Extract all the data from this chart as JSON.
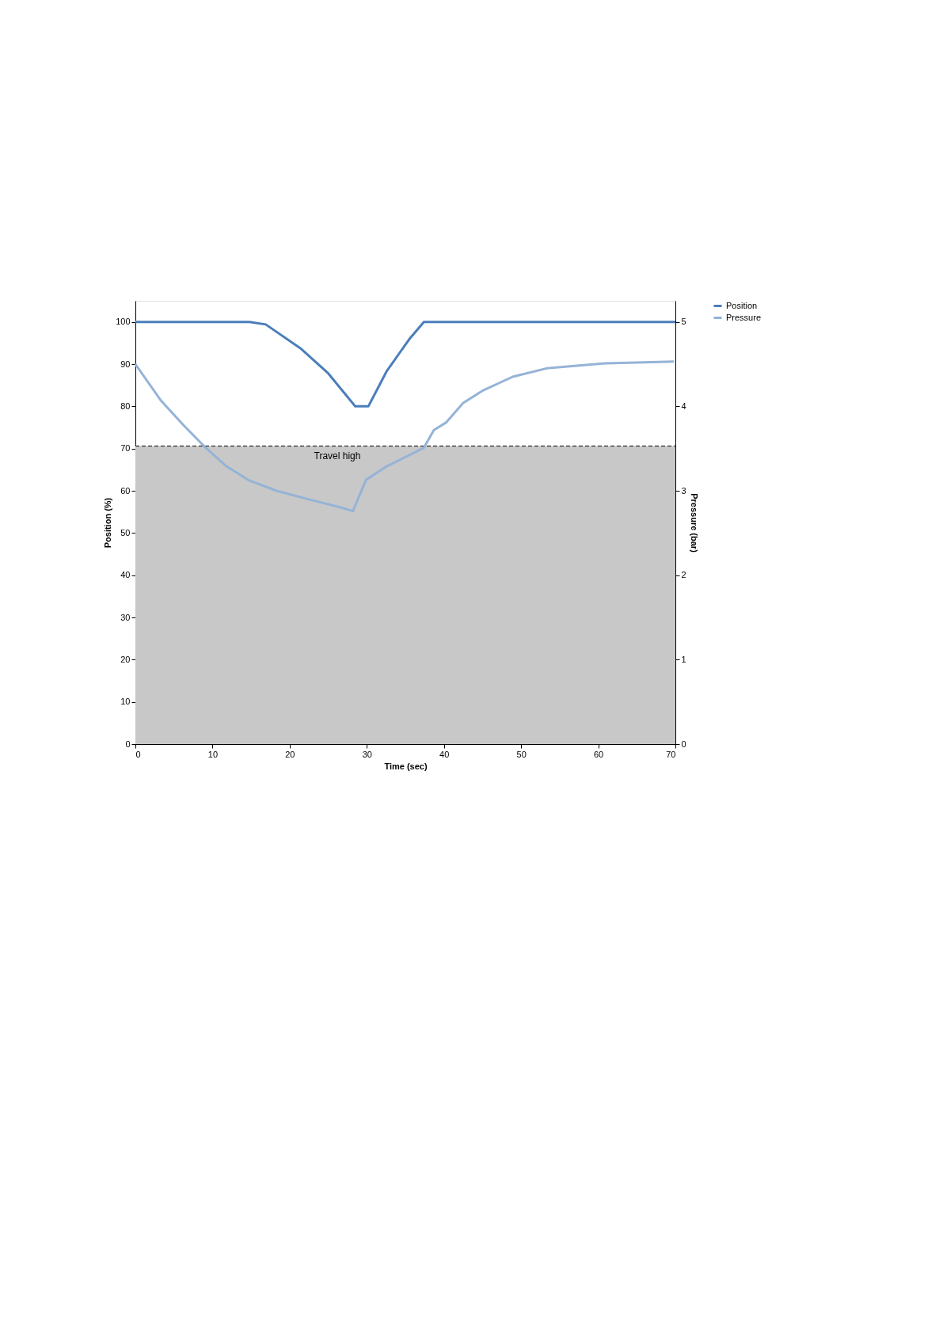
{
  "chart_data": {
    "type": "line",
    "xlabel": "Time (sec)",
    "ylabel": "Position (%)",
    "y2label": "Pressure (bar)",
    "xlim": [
      0,
      70
    ],
    "xticks": [
      0,
      10,
      20,
      30,
      40,
      50,
      60,
      70
    ],
    "ylim": [
      0,
      105
    ],
    "yticks": [
      0,
      10,
      20,
      30,
      40,
      50,
      60,
      70,
      80,
      90,
      100
    ],
    "y2lim": [
      0,
      5.25
    ],
    "y2ticks": [
      0,
      1,
      2,
      3,
      4,
      5
    ],
    "grid": false,
    "legend": "right",
    "line_style": "solid",
    "marker": "none",
    "series": [
      {
        "name": "Position",
        "color": "#4a7ebb",
        "x": [
          0,
          14.8,
          16.9,
          21.5,
          25.0,
          28.5,
          30.2,
          32.6,
          35.5,
          37.4,
          70
        ],
        "values": [
          100,
          100,
          99.4,
          93.6,
          87.8,
          80,
          80,
          88.4,
          95.9,
          100,
          100
        ]
      },
      {
        "name": "Pressure",
        "color": "#95b3d7",
        "axis": "y2",
        "x": [
          0,
          3.3,
          6.2,
          9.0,
          11.8,
          14.8,
          18.3,
          22.4,
          26.3,
          28.2,
          29.9,
          32.6,
          37.4,
          38.7,
          40.3,
          42.5,
          45.1,
          48.9,
          53.3,
          61.0,
          69.8
        ],
        "values": [
          4.5,
          4.07,
          3.78,
          3.52,
          3.29,
          3.12,
          3.0,
          2.9,
          2.81,
          2.76,
          3.13,
          3.29,
          3.51,
          3.72,
          3.81,
          4.04,
          4.19,
          4.35,
          4.45,
          4.51,
          4.53
        ]
      }
    ],
    "bands": [
      {
        "axis": "y",
        "from": 0,
        "to": 70.6,
        "color": "#c8c8c8"
      }
    ],
    "ref_lines": [
      {
        "axis": "y",
        "value": 70.6,
        "label": "Travel high",
        "color": "#000000",
        "line_style": "dashed"
      }
    ]
  }
}
